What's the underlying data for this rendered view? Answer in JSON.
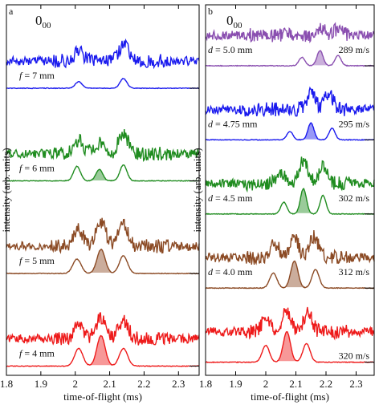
{
  "chart_data": [
    {
      "type": "line",
      "panel_label": "a",
      "corner_title": "0",
      "corner_title_sub": "00",
      "xlabel": "time-of-flight (ms)",
      "ylabel": "intensity (arb. units)",
      "xlim": [
        1.8,
        2.36
      ],
      "x_ticks": [
        1.8,
        1.9,
        2.0,
        2.1,
        2.2,
        2.3
      ],
      "x_tick_labels": [
        "1.8",
        "1.9",
        "2",
        "2.1",
        "2.2",
        "2.3"
      ],
      "groups": [
        {
          "label": "f = 7 mm",
          "color": "#1a1aee",
          "noisy_peaks": [
            [
              2.01,
              0.25
            ],
            [
              2.14,
              0.45
            ]
          ],
          "fit_peaks": [
            [
              2.01,
              0.2,
              0.01
            ],
            [
              2.14,
              0.3,
              0.01
            ]
          ],
          "shaded_peak": null
        },
        {
          "label": "f = 6 mm",
          "color": "#1f8c1f",
          "noisy_peaks": [
            [
              2.01,
              0.35
            ],
            [
              2.07,
              0.3
            ],
            [
              2.14,
              0.55
            ]
          ],
          "fit_peaks": [
            [
              2.005,
              0.45,
              0.01
            ],
            [
              2.07,
              0.35,
              0.01
            ],
            [
              2.14,
              0.5,
              0.01
            ]
          ],
          "shaded_peak": [
            2.07,
            0.35,
            0.01
          ]
        },
        {
          "label": "f = 5 mm",
          "color": "#8b4a24",
          "noisy_peaks": [
            [
              2.01,
              0.45
            ],
            [
              2.075,
              0.65
            ],
            [
              2.14,
              0.6
            ]
          ],
          "fit_peaks": [
            [
              2.005,
              0.45,
              0.012
            ],
            [
              2.075,
              0.75,
              0.012
            ],
            [
              2.14,
              0.55,
              0.012
            ]
          ],
          "shaded_peak": [
            2.075,
            0.75,
            0.012
          ]
        },
        {
          "label": "f = 4 mm",
          "color": "#ee1a1a",
          "noisy_peaks": [
            [
              2.01,
              0.4
            ],
            [
              2.075,
              0.6
            ],
            [
              2.14,
              0.5
            ]
          ],
          "fit_peaks": [
            [
              2.01,
              0.55,
              0.012
            ],
            [
              2.075,
              0.95,
              0.012
            ],
            [
              2.14,
              0.55,
              0.012
            ]
          ],
          "shaded_peak": [
            2.075,
            0.95,
            0.012
          ]
        }
      ]
    },
    {
      "type": "line",
      "panel_label": "b",
      "corner_title": "0",
      "corner_title_sub": "00",
      "xlabel": "time-of-flight (ms)",
      "ylabel": "intensity (arb. units)",
      "xlim": [
        1.8,
        2.36
      ],
      "x_ticks": [
        1.8,
        1.9,
        2.0,
        2.1,
        2.2,
        2.3
      ],
      "x_tick_labels": [
        "1.8",
        "1.9",
        "2",
        "2.1",
        "2.2",
        "2.3"
      ],
      "groups": [
        {
          "label": "d = 5.0 mm",
          "speed": "289 m/s",
          "color": "#8a4fb0",
          "noisy_peaks": [
            [
              2.18,
              0.25
            ],
            [
              2.24,
              0.2
            ]
          ],
          "fit_peaks": [
            [
              2.12,
              0.25,
              0.01
            ],
            [
              2.18,
              0.45,
              0.01
            ],
            [
              2.24,
              0.3,
              0.01
            ]
          ],
          "shaded_peak": [
            2.18,
            0.45,
            0.01
          ]
        },
        {
          "label": "d = 4.75 mm",
          "speed": "295 m/s",
          "color": "#1a1aee",
          "noisy_peaks": [
            [
              2.15,
              0.55
            ],
            [
              2.21,
              0.5
            ]
          ],
          "fit_peaks": [
            [
              2.08,
              0.25,
              0.01
            ],
            [
              2.15,
              0.5,
              0.01
            ],
            [
              2.22,
              0.35,
              0.01
            ]
          ],
          "shaded_peak": [
            2.15,
            0.5,
            0.01
          ]
        },
        {
          "label": "d = 4.5 mm",
          "speed": "302 m/s",
          "color": "#1f8c1f",
          "noisy_peaks": [
            [
              2.05,
              0.35
            ],
            [
              2.125,
              0.75
            ],
            [
              2.19,
              0.55
            ]
          ],
          "fit_peaks": [
            [
              2.06,
              0.35,
              0.01
            ],
            [
              2.125,
              0.75,
              0.01
            ],
            [
              2.19,
              0.55,
              0.01
            ]
          ],
          "shaded_peak": [
            2.125,
            0.75,
            0.01
          ]
        },
        {
          "label": "d = 4.0 mm",
          "speed": "312 m/s",
          "color": "#8b4a24",
          "noisy_peaks": [
            [
              2.03,
              0.45
            ],
            [
              2.095,
              0.65
            ],
            [
              2.16,
              0.65
            ]
          ],
          "fit_peaks": [
            [
              2.025,
              0.45,
              0.012
            ],
            [
              2.095,
              0.8,
              0.012
            ],
            [
              2.165,
              0.55,
              0.012
            ]
          ],
          "shaded_peak": [
            2.095,
            0.8,
            0.012
          ]
        },
        {
          "label": "",
          "speed": "320 m/s",
          "color": "#ee1a1a",
          "noisy_peaks": [
            [
              2.0,
              0.4
            ],
            [
              2.07,
              0.65
            ],
            [
              2.14,
              0.6
            ]
          ],
          "fit_peaks": [
            [
              2.0,
              0.5,
              0.012
            ],
            [
              2.07,
              0.9,
              0.012
            ],
            [
              2.135,
              0.55,
              0.012
            ]
          ],
          "shaded_peak": [
            2.07,
            0.9,
            0.012
          ]
        }
      ]
    }
  ]
}
